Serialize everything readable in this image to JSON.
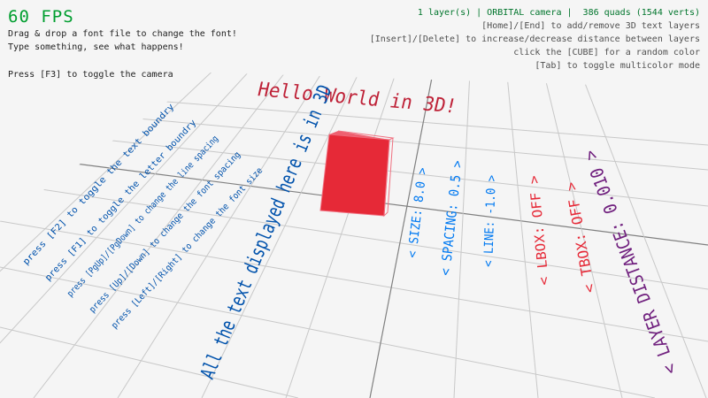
{
  "hud": {
    "fps": "60 FPS",
    "help_lines": [
      "Drag & drop a font file to change the font!",
      "Type something, see what happens!",
      "Press [F3] to toggle the camera"
    ],
    "status": "1 layer(s) | ORBITAL camera |  386 quads (1544 verts)",
    "controls": [
      "[Home]/[End] to add/remove 3D text layers",
      "[Insert]/[Delete] to increase/decrease distance between layers",
      "click the [CUBE] for a random color",
      "[Tab] to toggle multicolor mode"
    ]
  },
  "scene": {
    "title_text": "Hello World in 3D!",
    "info_lines": [
      "press [F2] to toggle the text boundry",
      "press [F1] to toggle the letter boundry",
      "press [PgUp]/[PgDown] to change the line spacing",
      "press [Up]/[Down] to change the font spacing",
      "press [Left]/[Right] to change the font size",
      "All the text displayed here is in 3D"
    ],
    "settings": [
      {
        "label": "< SIZE: 8.0 >",
        "color": "#0079f1"
      },
      {
        "label": "< SPACING: 0.5 >",
        "color": "#0079f1"
      },
      {
        "label": "< LINE: -1.0 >",
        "color": "#0079f1"
      },
      {
        "label": "< LBOX: OFF >",
        "color": "#e62937"
      },
      {
        "label": "< TBOX: OFF >",
        "color": "#e62937"
      },
      {
        "label": "< LAYER DISTANCE: 0.010 >",
        "color": "#70207e"
      }
    ],
    "colors": {
      "background": "#f5f5f5",
      "grid": "#c8c8c8",
      "axis": "#808080",
      "cube": "#e62937",
      "title_text": "#be2137",
      "info_text": "#0052ac",
      "fps": "#009e2f",
      "status": "#00752c"
    }
  }
}
